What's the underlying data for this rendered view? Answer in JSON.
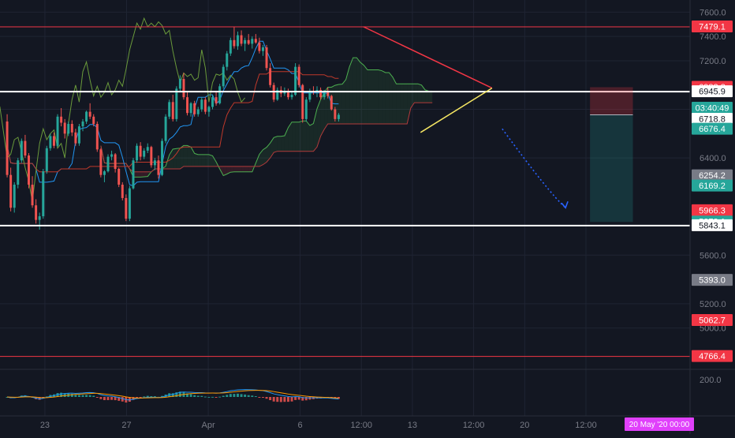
{
  "chart_data": {
    "type": "candlestick",
    "symbol_note": "",
    "price_axis": {
      "ticks": [
        "7600.0",
        "7400.0",
        "7200.0",
        "6800.0",
        "6400.0",
        "5600.0",
        "5200.0",
        "5000.0"
      ],
      "tick_values": [
        7600,
        7400,
        7200,
        6800,
        6400,
        5600,
        5200,
        5000
      ],
      "ylim": [
        4660,
        7700
      ]
    },
    "indicator_axis": {
      "ticks": [
        "200.0"
      ],
      "tick_values": [
        200
      ]
    },
    "time_axis": {
      "labels": [
        "23",
        "27",
        "Apr",
        "6",
        "12:00",
        "13",
        "12:00",
        "20",
        "12:00"
      ],
      "positions": [
        0.0,
        4.0,
        8.0,
        12.5,
        15.5,
        18.0,
        21.0,
        23.5,
        26.5
      ],
      "xlim": [
        -2.2,
        31.6
      ],
      "current_label": "20 May '20  00:00"
    },
    "price_labels": [
      {
        "text": "7479.1",
        "value": 7479.1,
        "color": "#f23645",
        "style": "filled"
      },
      {
        "text": "6982.3",
        "value": 6982.3,
        "color": "#f23645",
        "style": "filled"
      },
      {
        "text": "6945.9",
        "value": 6945.9,
        "color": "#ffffff",
        "style": "white"
      },
      {
        "text": "6755.0",
        "value": 6755.0,
        "color": "#26a69a",
        "style": "filled"
      },
      {
        "text": "03:40:49",
        "value": 6718.8,
        "color": "#26a69a",
        "style": "filled",
        "offset": -14
      },
      {
        "text": "6718.8",
        "value": 6718.8,
        "color": "#ffffff",
        "style": "white"
      },
      {
        "text": "6676.4",
        "value": 6676.4,
        "color": "#26a69a",
        "style": "filled",
        "offset": 6
      },
      {
        "text": "6254.2",
        "value": 6254.2,
        "color": "#787b86",
        "style": "filled"
      },
      {
        "text": "6169.2",
        "value": 6169.2,
        "color": "#26a69a",
        "style": "filled"
      },
      {
        "text": "5966.3",
        "value": 5966.3,
        "color": "#f23645",
        "style": "filled"
      },
      {
        "text": "5873.1",
        "value": 5873.1,
        "color": "#26a69a",
        "style": "filled"
      },
      {
        "text": "5843.1",
        "value": 5843.1,
        "color": "#ffffff",
        "style": "white"
      },
      {
        "text": "5393.0",
        "value": 5393.0,
        "color": "#787b86",
        "style": "filled"
      },
      {
        "text": "5062.7",
        "value": 5062.7,
        "color": "#f23645",
        "style": "filled"
      },
      {
        "text": "4766.4",
        "value": 4766.4,
        "color": "#f23645",
        "style": "filled"
      }
    ],
    "horizontal_lines": [
      {
        "value": 7479.1,
        "color": "#f23645",
        "width": 1
      },
      {
        "value": 6945.9,
        "color": "#ffffff",
        "width": 2
      },
      {
        "value": 5843.1,
        "color": "#ffffff",
        "width": 2
      },
      {
        "value": 4766.4,
        "color": "#f23645",
        "width": 1
      }
    ],
    "trendlines": [
      {
        "x1": 15.6,
        "y1": 7480,
        "x2": 21.9,
        "y2": 6975,
        "color": "#f23645"
      },
      {
        "x1": 18.4,
        "y1": 6610,
        "x2": 21.9,
        "y2": 6975,
        "color": "#f5e663"
      }
    ],
    "projection_arrow": {
      "x1": 22.4,
      "y1": 6640,
      "x2": 25.5,
      "y2": 5990,
      "color": "#2962ff"
    },
    "position_box": {
      "x1": 26.7,
      "x2": 28.8,
      "entry": 6755.0,
      "stop": 6982.3,
      "target": 5873.1
    },
    "candles": {
      "x_start": -2.2,
      "x_step": 0.1765,
      "ohlc": [
        [
          6700,
          6760,
          6240,
          6260
        ],
        [
          6260,
          6320,
          5960,
          5990
        ],
        [
          5990,
          6200,
          5950,
          6180
        ],
        [
          6180,
          6400,
          6150,
          6380
        ],
        [
          6380,
          6560,
          6360,
          6540
        ],
        [
          6540,
          6590,
          6400,
          6420
        ],
        [
          6420,
          6440,
          6150,
          6180
        ],
        [
          6180,
          6250,
          5990,
          6010
        ],
        [
          6010,
          6060,
          5860,
          5890
        ],
        [
          5890,
          5950,
          5810,
          5920
        ],
        [
          5920,
          6310,
          5900,
          6290
        ],
        [
          6290,
          6500,
          6270,
          6480
        ],
        [
          6480,
          6600,
          6460,
          6580
        ],
        [
          6580,
          6610,
          6480,
          6500
        ],
        [
          6500,
          6760,
          6490,
          6740
        ],
        [
          6740,
          6810,
          6660,
          6690
        ],
        [
          6690,
          6720,
          6560,
          6600
        ],
        [
          6600,
          6700,
          6580,
          6680
        ],
        [
          6680,
          6710,
          6580,
          6610
        ],
        [
          6610,
          6640,
          6500,
          6520
        ],
        [
          6520,
          6680,
          6500,
          6660
        ],
        [
          6660,
          6720,
          6620,
          6700
        ],
        [
          6700,
          6790,
          6680,
          6780
        ],
        [
          6780,
          6850,
          6720,
          6740
        ],
        [
          6740,
          6760,
          6660,
          6680
        ],
        [
          6680,
          6700,
          6450,
          6470
        ],
        [
          6470,
          6480,
          6240,
          6260
        ],
        [
          6260,
          6300,
          6200,
          6290
        ],
        [
          6290,
          6430,
          6280,
          6410
        ],
        [
          6410,
          6460,
          6380,
          6430
        ],
        [
          6430,
          6440,
          6280,
          6310
        ],
        [
          6310,
          6320,
          6160,
          6180
        ],
        [
          6180,
          6200,
          6050,
          6070
        ],
        [
          6070,
          6100,
          5880,
          5900
        ],
        [
          5900,
          6170,
          5880,
          6150
        ],
        [
          6150,
          6400,
          6140,
          6380
        ],
        [
          6380,
          6520,
          6360,
          6500
        ],
        [
          6500,
          6530,
          6380,
          6410
        ],
        [
          6410,
          6480,
          6390,
          6460
        ],
        [
          6460,
          6520,
          6440,
          6490
        ],
        [
          6490,
          6500,
          6320,
          6340
        ],
        [
          6340,
          6400,
          6300,
          6380
        ],
        [
          6380,
          6420,
          6230,
          6260
        ],
        [
          6260,
          6560,
          6250,
          6540
        ],
        [
          6540,
          6760,
          6520,
          6740
        ],
        [
          6740,
          6880,
          6720,
          6860
        ],
        [
          6860,
          6920,
          6700,
          6720
        ],
        [
          6720,
          6990,
          6700,
          6970
        ],
        [
          6970,
          7080,
          6940,
          7050
        ],
        [
          7050,
          7100,
          6880,
          6900
        ],
        [
          6900,
          6940,
          6750,
          6770
        ],
        [
          6770,
          6860,
          6740,
          6850
        ],
        [
          6850,
          6870,
          6740,
          6760
        ],
        [
          6760,
          6820,
          6740,
          6800
        ],
        [
          6800,
          6900,
          6780,
          6880
        ],
        [
          6880,
          6900,
          6760,
          6780
        ],
        [
          6780,
          6830,
          6740,
          6820
        ],
        [
          6820,
          6920,
          6800,
          6900
        ],
        [
          6900,
          6950,
          6830,
          6850
        ],
        [
          6850,
          7010,
          6840,
          6990
        ],
        [
          6990,
          7170,
          6970,
          7150
        ],
        [
          7150,
          7280,
          7120,
          7260
        ],
        [
          7260,
          7390,
          7240,
          7370
        ],
        [
          7370,
          7480,
          7300,
          7320
        ],
        [
          7320,
          7440,
          7290,
          7410
        ],
        [
          7410,
          7450,
          7320,
          7340
        ],
        [
          7340,
          7390,
          7280,
          7370
        ],
        [
          7370,
          7420,
          7330,
          7340
        ],
        [
          7340,
          7400,
          7300,
          7380
        ],
        [
          7380,
          7420,
          7340,
          7350
        ],
        [
          7350,
          7390,
          7260,
          7280
        ],
        [
          7280,
          7330,
          7240,
          7310
        ],
        [
          7310,
          7330,
          7120,
          7140
        ],
        [
          7140,
          7180,
          6980,
          7000
        ],
        [
          7000,
          7020,
          6860,
          6880
        ],
        [
          6880,
          6980,
          6870,
          6960
        ],
        [
          6960,
          6990,
          6900,
          6930
        ],
        [
          6930,
          6980,
          6910,
          6950
        ],
        [
          6950,
          6970,
          6880,
          6900
        ],
        [
          6900,
          6940,
          6880,
          6920
        ],
        [
          6920,
          7180,
          6910,
          7150
        ],
        [
          7150,
          7170,
          6980,
          7000
        ],
        [
          7000,
          7010,
          6690,
          6720
        ],
        [
          6720,
          6900,
          6700,
          6880
        ],
        [
          6880,
          6970,
          6860,
          6950
        ],
        [
          6950,
          6990,
          6920,
          6940
        ],
        [
          6940,
          6990,
          6900,
          6960
        ],
        [
          6960,
          6980,
          6880,
          6900
        ],
        [
          6900,
          6960,
          6880,
          6940
        ],
        [
          6940,
          6980,
          6890,
          6910
        ],
        [
          6910,
          6920,
          6790,
          6800
        ],
        [
          6800,
          6820,
          6700,
          6720
        ],
        [
          6720,
          6770,
          6700,
          6755
        ]
      ]
    }
  }
}
